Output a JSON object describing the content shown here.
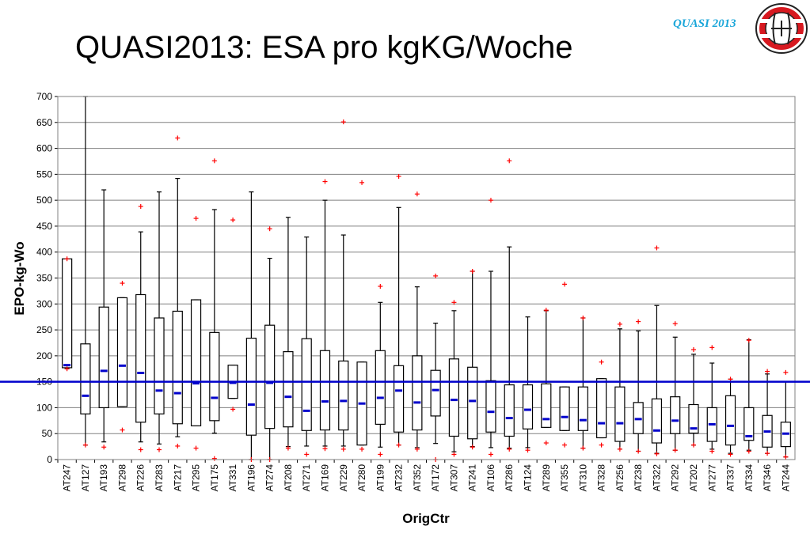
{
  "slide": {
    "title": "QUASI2013: ESA pro kgKG/Woche",
    "brand": "QUASI 2013",
    "brand_color": "#1aa6d9",
    "logo_color": "#d71920"
  },
  "chart_data": {
    "type": "boxplot",
    "title": "",
    "xlabel": "OrigCtr",
    "ylabel": "EPO-kg-Wo",
    "ylim": [
      0,
      700
    ],
    "yticks": [
      0,
      50,
      100,
      150,
      200,
      250,
      300,
      350,
      400,
      450,
      500,
      550,
      600,
      650,
      700
    ],
    "grid": true,
    "reference_line": 150,
    "colors": {
      "box": "#000000",
      "median": "#0000cc",
      "outlier": "#ff0000",
      "reference": "#0000cc",
      "grid": "#808080"
    },
    "categories": [
      "AT247",
      "AT127",
      "AT193",
      "AT298",
      "AT226",
      "AT283",
      "AT217",
      "AT295",
      "AT175",
      "AT331",
      "AT196",
      "AT274",
      "AT208",
      "AT271",
      "AT169",
      "AT229",
      "AT280",
      "AT199",
      "AT232",
      "AT352",
      "AT172",
      "AT307",
      "AT241",
      "AT106",
      "AT286",
      "AT124",
      "AT289",
      "AT355",
      "AT310",
      "AT328",
      "AT256",
      "AT238",
      "AT322",
      "AT292",
      "AT202",
      "AT277",
      "AT337",
      "AT334",
      "AT346",
      "AT244"
    ],
    "boxes": [
      {
        "whislo": 175,
        "q1": 177,
        "med": 182,
        "q3": 387,
        "whishi": 387,
        "fliers": [
          175,
          387
        ]
      },
      {
        "whislo": 28,
        "q1": 88,
        "med": 123,
        "q3": 223,
        "whishi": 700,
        "fliers": [
          28
        ]
      },
      {
        "whislo": 34,
        "q1": 100,
        "med": 171,
        "q3": 294,
        "whishi": 520,
        "fliers": [
          24
        ]
      },
      {
        "whislo": 102,
        "q1": 102,
        "med": 181,
        "q3": 312,
        "whishi": 312,
        "fliers": [
          57,
          340
        ]
      },
      {
        "whislo": 34,
        "q1": 72,
        "med": 167,
        "q3": 318,
        "whishi": 439,
        "fliers": [
          19,
          488
        ]
      },
      {
        "whislo": 30,
        "q1": 88,
        "med": 133,
        "q3": 273,
        "whishi": 516,
        "fliers": [
          19
        ]
      },
      {
        "whislo": 44,
        "q1": 69,
        "med": 128,
        "q3": 286,
        "whishi": 542,
        "fliers": [
          26,
          620
        ]
      },
      {
        "whislo": 65,
        "q1": 65,
        "med": 147,
        "q3": 308,
        "whishi": 308,
        "fliers": [
          22,
          465
        ]
      },
      {
        "whislo": 51,
        "q1": 75,
        "med": 119,
        "q3": 245,
        "whishi": 482,
        "fliers": [
          2,
          576
        ]
      },
      {
        "whislo": 118,
        "q1": 118,
        "med": 148,
        "q3": 182,
        "whishi": 182,
        "fliers": [
          97,
          462
        ]
      },
      {
        "whislo": 0,
        "q1": 47,
        "med": 106,
        "q3": 234,
        "whishi": 516,
        "fliers": [
          0
        ]
      },
      {
        "whislo": 0,
        "q1": 60,
        "med": 148,
        "q3": 259,
        "whishi": 388,
        "fliers": [
          0,
          445
        ]
      },
      {
        "whislo": 25,
        "q1": 63,
        "med": 121,
        "q3": 208,
        "whishi": 467,
        "fliers": [
          22
        ]
      },
      {
        "whislo": 26,
        "q1": 56,
        "med": 94,
        "q3": 233,
        "whishi": 429,
        "fliers": [
          10
        ]
      },
      {
        "whislo": 26,
        "q1": 57,
        "med": 112,
        "q3": 210,
        "whishi": 500,
        "fliers": [
          21,
          536
        ]
      },
      {
        "whislo": 26,
        "q1": 57,
        "med": 113,
        "q3": 190,
        "whishi": 433,
        "fliers": [
          20,
          651
        ]
      },
      {
        "whislo": 28,
        "q1": 28,
        "med": 108,
        "q3": 188,
        "whishi": 188,
        "fliers": [
          20,
          534
        ]
      },
      {
        "whislo": 24,
        "q1": 68,
        "med": 119,
        "q3": 210,
        "whishi": 303,
        "fliers": [
          10,
          334
        ]
      },
      {
        "whislo": 28,
        "q1": 53,
        "med": 133,
        "q3": 181,
        "whishi": 486,
        "fliers": [
          28,
          546
        ]
      },
      {
        "whislo": 23,
        "q1": 57,
        "med": 110,
        "q3": 200,
        "whishi": 333,
        "fliers": [
          20,
          512
        ]
      },
      {
        "whislo": 31,
        "q1": 84,
        "med": 134,
        "q3": 172,
        "whishi": 263,
        "fliers": [
          0,
          354
        ]
      },
      {
        "whislo": 15,
        "q1": 45,
        "med": 115,
        "q3": 194,
        "whishi": 287,
        "fliers": [
          10,
          303
        ]
      },
      {
        "whislo": 25,
        "q1": 40,
        "med": 113,
        "q3": 178,
        "whishi": 363,
        "fliers": [
          24,
          363
        ]
      },
      {
        "whislo": 23,
        "q1": 53,
        "med": 92,
        "q3": 152,
        "whishi": 363,
        "fliers": [
          10,
          500
        ]
      },
      {
        "whislo": 22,
        "q1": 45,
        "med": 80,
        "q3": 144,
        "whishi": 410,
        "fliers": [
          20,
          576
        ]
      },
      {
        "whislo": 23,
        "q1": 59,
        "med": 96,
        "q3": 144,
        "whishi": 275,
        "fliers": [
          18
        ]
      },
      {
        "whislo": 62,
        "q1": 62,
        "med": 78,
        "q3": 146,
        "whishi": 287,
        "fliers": [
          32,
          288
        ]
      },
      {
        "whislo": 56,
        "q1": 56,
        "med": 82,
        "q3": 140,
        "whishi": 140,
        "fliers": [
          28,
          338
        ]
      },
      {
        "whislo": 22,
        "q1": 56,
        "med": 76,
        "q3": 140,
        "whishi": 273,
        "fliers": [
          22,
          273
        ]
      },
      {
        "whislo": 42,
        "q1": 42,
        "med": 70,
        "q3": 156,
        "whishi": 156,
        "fliers": [
          28,
          188
        ]
      },
      {
        "whislo": 20,
        "q1": 35,
        "med": 70,
        "q3": 140,
        "whishi": 252,
        "fliers": [
          20,
          261
        ]
      },
      {
        "whislo": 16,
        "q1": 50,
        "med": 78,
        "q3": 110,
        "whishi": 248,
        "fliers": [
          16,
          266
        ]
      },
      {
        "whislo": 12,
        "q1": 32,
        "med": 56,
        "q3": 117,
        "whishi": 297,
        "fliers": [
          11,
          408
        ]
      },
      {
        "whislo": 18,
        "q1": 50,
        "med": 75,
        "q3": 121,
        "whishi": 236,
        "fliers": [
          18,
          262
        ]
      },
      {
        "whislo": 28,
        "q1": 51,
        "med": 60,
        "q3": 106,
        "whishi": 203,
        "fliers": [
          28,
          212
        ]
      },
      {
        "whislo": 20,
        "q1": 35,
        "med": 68,
        "q3": 100,
        "whishi": 186,
        "fliers": [
          16,
          216
        ]
      },
      {
        "whislo": 12,
        "q1": 28,
        "med": 65,
        "q3": 123,
        "whishi": 155,
        "fliers": [
          10,
          155
        ]
      },
      {
        "whislo": 18,
        "q1": 37,
        "med": 45,
        "q3": 100,
        "whishi": 231,
        "fliers": [
          16,
          230
        ]
      },
      {
        "whislo": 12,
        "q1": 24,
        "med": 54,
        "q3": 85,
        "whishi": 165,
        "fliers": [
          12,
          170
        ]
      },
      {
        "whislo": 5,
        "q1": 25,
        "med": 50,
        "q3": 72,
        "whishi": 150,
        "fliers": [
          5,
          168
        ]
      }
    ]
  }
}
